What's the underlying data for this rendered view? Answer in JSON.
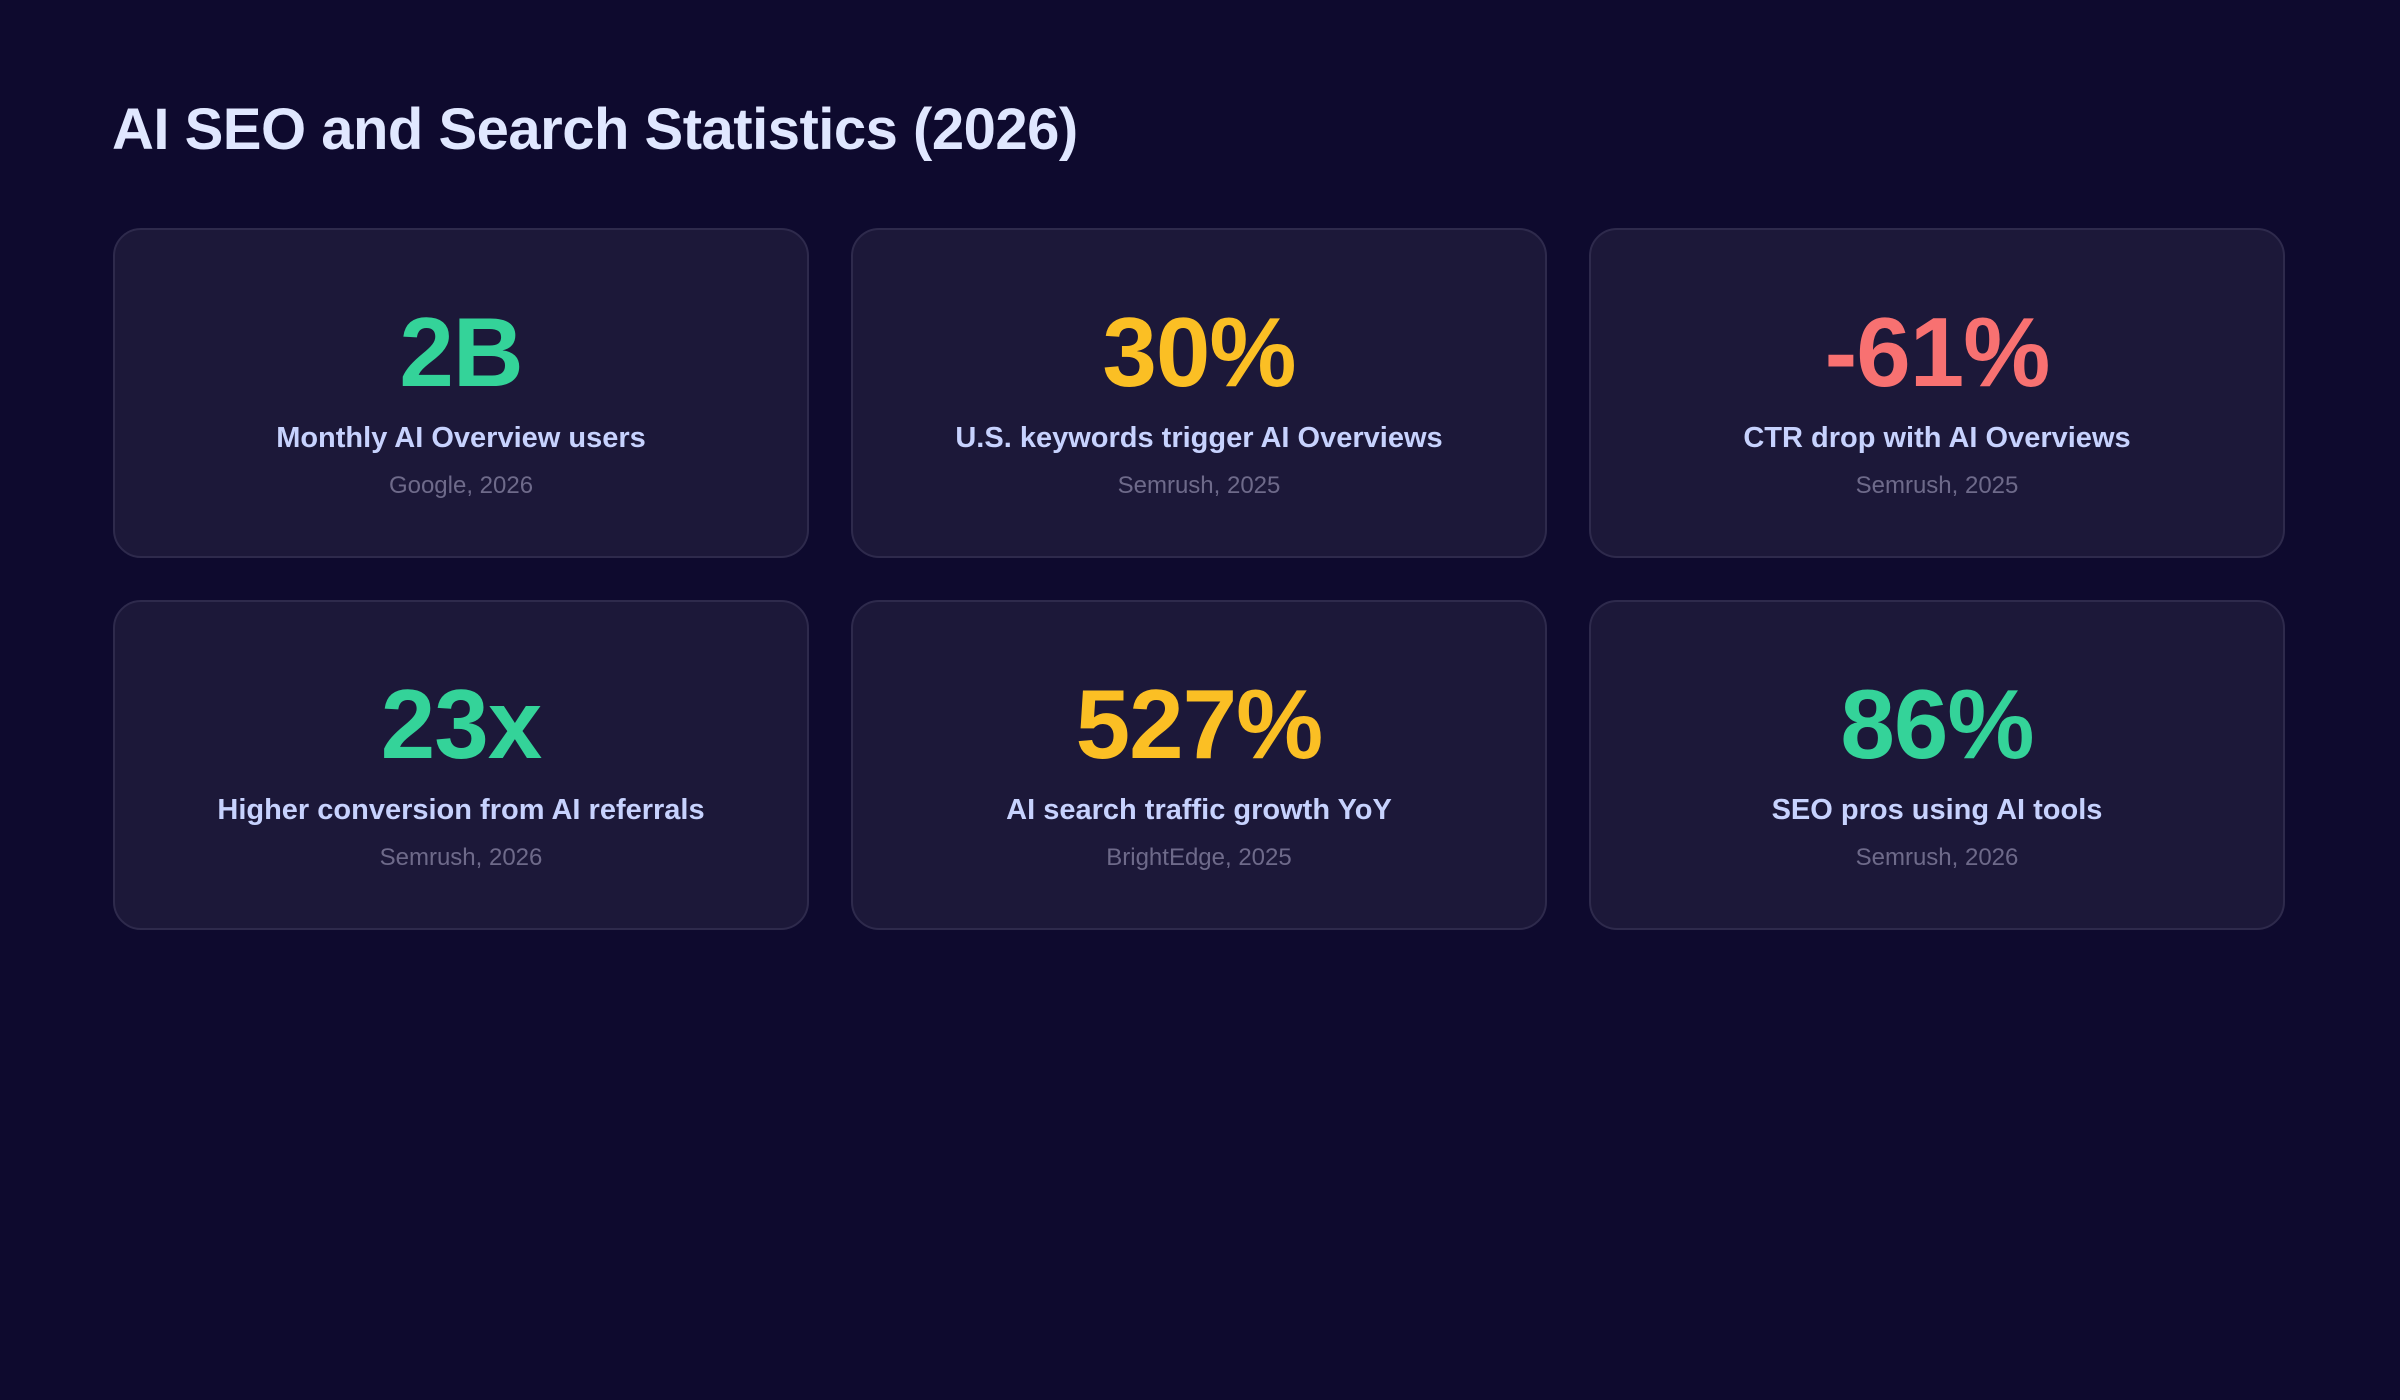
{
  "title": "AI SEO and Search Statistics (2026)",
  "colors": {
    "background": "#0e0a2e",
    "card": "#1c1839",
    "green": "#34d399",
    "yellow": "#fbbf24",
    "red": "#f87171"
  },
  "stats": [
    {
      "value": "2B",
      "label": "Monthly AI Overview users",
      "source": "Google, 2026",
      "color": "#34d399"
    },
    {
      "value": "30%",
      "label": "U.S. keywords trigger AI Overviews",
      "source": "Semrush, 2025",
      "color": "#fbbf24"
    },
    {
      "value": "-61%",
      "label": "CTR drop with AI Overviews",
      "source": "Semrush, 2025",
      "color": "#f87171"
    },
    {
      "value": "23x",
      "label": "Higher conversion from AI referrals",
      "source": "Semrush, 2026",
      "color": "#34d399"
    },
    {
      "value": "527%",
      "label": "AI search traffic growth YoY",
      "source": "BrightEdge, 2025",
      "color": "#fbbf24"
    },
    {
      "value": "86%",
      "label": "SEO pros using AI tools",
      "source": "Semrush, 2026",
      "color": "#34d399"
    }
  ]
}
